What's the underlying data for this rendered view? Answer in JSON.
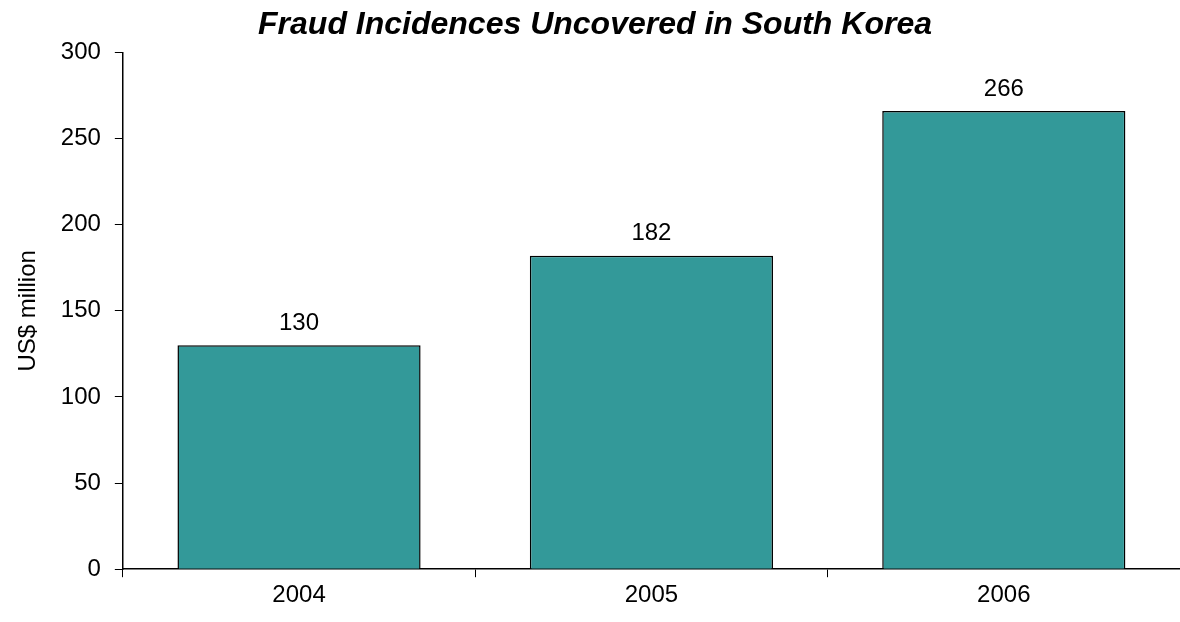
{
  "chart_data": {
    "type": "bar",
    "title": "Fraud Incidences Uncovered in South Korea",
    "ylabel": "US$ million",
    "categories": [
      "2004",
      "2005",
      "2006"
    ],
    "values": [
      130,
      182,
      266
    ],
    "color": "#339999",
    "ylim": [
      0,
      300
    ],
    "yticks": [
      0,
      50,
      100,
      150,
      200,
      250,
      300
    ],
    "grid": false,
    "legend": false,
    "data_labels": true
  }
}
